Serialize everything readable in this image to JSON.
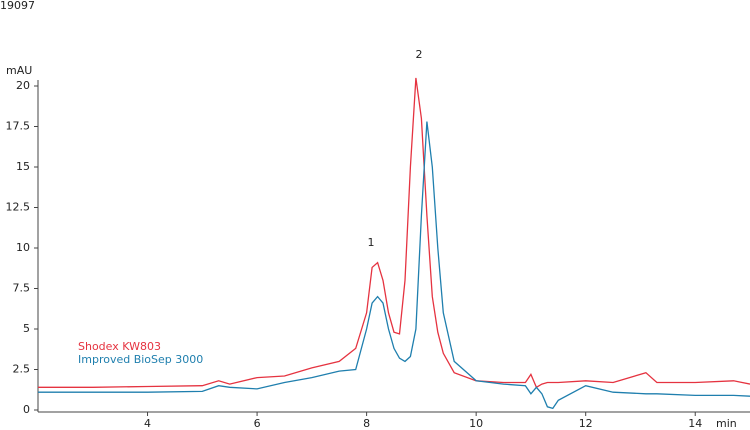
{
  "chart_data": {
    "type": "line",
    "caption": "19097",
    "y_label": "mAU",
    "x_label": "min",
    "peak_labels": [
      "1",
      "2"
    ],
    "x": [
      2,
      3,
      4,
      5,
      5.3,
      5.5,
      6,
      6.5,
      7,
      7.5,
      7.8,
      8,
      8.1,
      8.2,
      8.3,
      8.4,
      8.5,
      8.6,
      8.7,
      8.8,
      8.9,
      9,
      9.1,
      9.2,
      9.3,
      9.4,
      9.6,
      10,
      10.5,
      10.9,
      11,
      11.1,
      11.2,
      11.3,
      11.4,
      11.5,
      12,
      12.5,
      13.1,
      13.3,
      14,
      14.7,
      15
    ],
    "series": [
      {
        "name": "Shodex KW803",
        "color": "#e53340",
        "values": [
          1.4,
          1.4,
          1.45,
          1.5,
          1.8,
          1.6,
          2.0,
          2.1,
          2.6,
          3.0,
          3.8,
          6.0,
          8.8,
          9.1,
          8.0,
          6.0,
          4.8,
          4.7,
          8.0,
          15.0,
          20.5,
          18.0,
          12.0,
          7.0,
          4.8,
          3.5,
          2.3,
          1.8,
          1.7,
          1.7,
          2.2,
          1.4,
          1.6,
          1.7,
          1.7,
          1.7,
          1.8,
          1.7,
          2.3,
          1.7,
          1.7,
          1.8,
          1.6
        ]
      },
      {
        "name": "Improved BioSep 3000",
        "color": "#1f7fae",
        "values": [
          1.1,
          1.1,
          1.1,
          1.15,
          1.5,
          1.4,
          1.3,
          1.7,
          2.0,
          2.4,
          2.5,
          5.0,
          6.6,
          7.0,
          6.6,
          5.0,
          3.8,
          3.2,
          3.0,
          3.3,
          5.0,
          12.0,
          17.8,
          15.0,
          10.0,
          6.0,
          3.0,
          1.8,
          1.6,
          1.5,
          1.0,
          1.4,
          1.0,
          0.2,
          0.1,
          0.6,
          1.5,
          1.1,
          1.0,
          1.0,
          0.9,
          0.9,
          0.85
        ]
      }
    ],
    "xlim": [
      2,
      15
    ],
    "ylim": [
      0,
      20
    ],
    "xticks": [
      4,
      6,
      8,
      10,
      12,
      14
    ],
    "yticks": [
      0,
      2.5,
      5,
      7.5,
      10,
      12.5,
      15,
      17.5,
      20
    ]
  }
}
